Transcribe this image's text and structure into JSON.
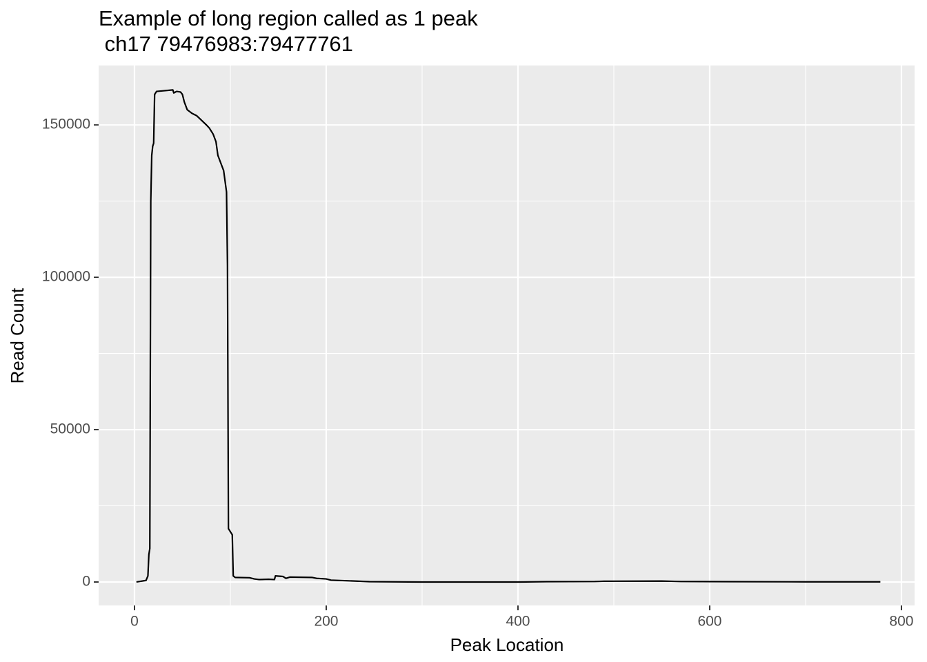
{
  "chart_data": {
    "type": "line",
    "title": [
      "Example of long region called as 1 peak",
      " ch17 79476983:79477761"
    ],
    "x_label": "Peak Location",
    "y_label": "Read Count",
    "x": [
      2,
      12,
      14,
      15,
      16,
      17,
      18,
      19,
      20,
      21,
      23,
      30,
      40,
      41,
      44,
      48,
      50,
      52,
      55,
      60,
      65,
      70,
      75,
      78,
      82,
      85,
      87,
      90,
      93,
      96,
      97,
      98,
      100,
      102,
      103,
      105,
      120,
      125,
      130,
      140,
      146,
      147,
      155,
      158,
      162,
      185,
      190,
      200,
      205,
      230,
      245,
      300,
      400,
      430,
      480,
      490,
      550,
      570,
      620,
      700,
      778
    ],
    "values": [
      0,
      500,
      2000,
      9000,
      11000,
      125000,
      140000,
      143000,
      144000,
      160000,
      161000,
      161200,
      161500,
      160500,
      161000,
      160800,
      160000,
      157500,
      155000,
      153800,
      153000,
      151500,
      150000,
      149000,
      147000,
      144500,
      140000,
      137500,
      135000,
      128000,
      104000,
      17500,
      16500,
      15500,
      2000,
      1500,
      1400,
      1000,
      800,
      900,
      800,
      2000,
      1800,
      1200,
      1600,
      1500,
      1200,
      1000,
      600,
      300,
      100,
      0,
      0,
      100,
      150,
      250,
      300,
      150,
      100,
      50,
      50
    ],
    "color": "#000000",
    "xlim": [
      -37.4,
      813.7
    ],
    "xticks": [
      0,
      200,
      400,
      600,
      800
    ],
    "x_minor_grid": [
      100,
      300,
      500,
      700
    ],
    "ylim": [
      -7700,
      169500
    ],
    "yticks": [
      0,
      50000,
      100000,
      150000
    ],
    "y_minor_grid": [
      25000,
      75000,
      125000
    ],
    "grid": true
  }
}
